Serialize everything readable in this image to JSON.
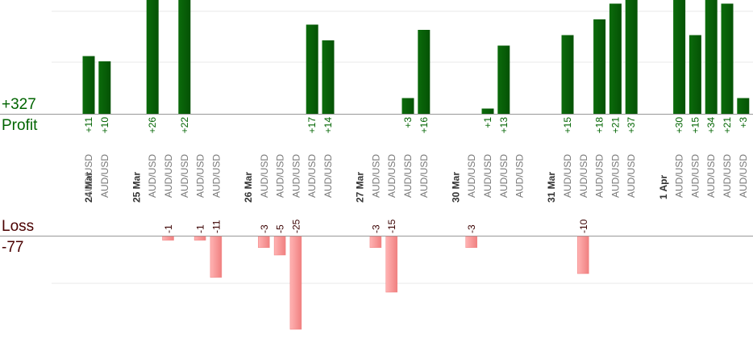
{
  "summary": {
    "profit_total": "+327",
    "profit_label": "Profit",
    "loss_label": "Loss",
    "loss_total": "-77"
  },
  "colors": {
    "profit_bar": "#0b6b0b",
    "profit_bar_dark": "#055205",
    "profit_text": "#006400",
    "loss_bar": "#ffb3b3",
    "loss_bar_edge": "#f08080",
    "loss_text": "#3a0000",
    "grid": "#e8e8e8",
    "axis": "#999999",
    "symbol_text": "#777777",
    "date_text": "#333333"
  },
  "chart_data": {
    "type": "bar",
    "description_of_axes": "profit/loss per trade, grouped by date",
    "profit_ylim": [
      0,
      22
    ],
    "loss_ylim": [
      -25,
      0
    ],
    "grid": true,
    "trades": [
      {
        "date": "24 Mar",
        "symbol": "AUD/USD",
        "value": 11
      },
      {
        "date": "",
        "symbol": "AUD/USD",
        "value": 10
      },
      {
        "date": "",
        "symbol": "",
        "value": null
      },
      {
        "date": "25 Mar",
        "symbol": "",
        "value": null
      },
      {
        "date": "",
        "symbol": "AUD/USD",
        "value": 26
      },
      {
        "date": "",
        "symbol": "AUD/USD",
        "value": -1
      },
      {
        "date": "",
        "symbol": "AUD/USD",
        "value": 22
      },
      {
        "date": "",
        "symbol": "AUD/USD",
        "value": -1
      },
      {
        "date": "",
        "symbol": "AUD/USD",
        "value": -11
      },
      {
        "date": "",
        "symbol": "",
        "value": null
      },
      {
        "date": "26 Mar",
        "symbol": "",
        "value": null
      },
      {
        "date": "",
        "symbol": "AUD/USD",
        "value": -3
      },
      {
        "date": "",
        "symbol": "AUD/USD",
        "value": -5
      },
      {
        "date": "",
        "symbol": "AUD/USD",
        "value": -25
      },
      {
        "date": "",
        "symbol": "AUD/USD",
        "value": 17
      },
      {
        "date": "",
        "symbol": "AUD/USD",
        "value": 14
      },
      {
        "date": "",
        "symbol": "",
        "value": null
      },
      {
        "date": "27 Mar",
        "symbol": "",
        "value": null
      },
      {
        "date": "",
        "symbol": "AUD/USD",
        "value": -3
      },
      {
        "date": "",
        "symbol": "AUD/USD",
        "value": -15
      },
      {
        "date": "",
        "symbol": "AUD/USD",
        "value": 3
      },
      {
        "date": "",
        "symbol": "AUD/USD",
        "value": 16
      },
      {
        "date": "",
        "symbol": "",
        "value": null
      },
      {
        "date": "30 Mar",
        "symbol": "",
        "value": null
      },
      {
        "date": "",
        "symbol": "AUD/USD",
        "value": -3
      },
      {
        "date": "",
        "symbol": "AUD/USD",
        "value": 1
      },
      {
        "date": "",
        "symbol": "AUD/USD",
        "value": 13
      },
      {
        "date": "",
        "symbol": "AUD/USD",
        "value": null
      },
      {
        "date": "",
        "symbol": "",
        "value": null
      },
      {
        "date": "31 Mar",
        "symbol": "",
        "value": null
      },
      {
        "date": "",
        "symbol": "AUD/USD",
        "value": 15
      },
      {
        "date": "",
        "symbol": "AUD/USD",
        "value": -10
      },
      {
        "date": "",
        "symbol": "AUD/USD",
        "value": 18
      },
      {
        "date": "",
        "symbol": "AUD/USD",
        "value": 21
      },
      {
        "date": "",
        "symbol": "AUD/USD",
        "value": 37
      },
      {
        "date": "",
        "symbol": "",
        "value": null
      },
      {
        "date": "1 Apr",
        "symbol": "",
        "value": null
      },
      {
        "date": "",
        "symbol": "AUD/USD",
        "value": 30
      },
      {
        "date": "",
        "symbol": "AUD/USD",
        "value": 15
      },
      {
        "date": "",
        "symbol": "AUD/USD",
        "value": 34
      },
      {
        "date": "",
        "symbol": "AUD/USD",
        "value": 21
      },
      {
        "date": "",
        "symbol": "AUD/USD",
        "value": 3
      }
    ]
  }
}
